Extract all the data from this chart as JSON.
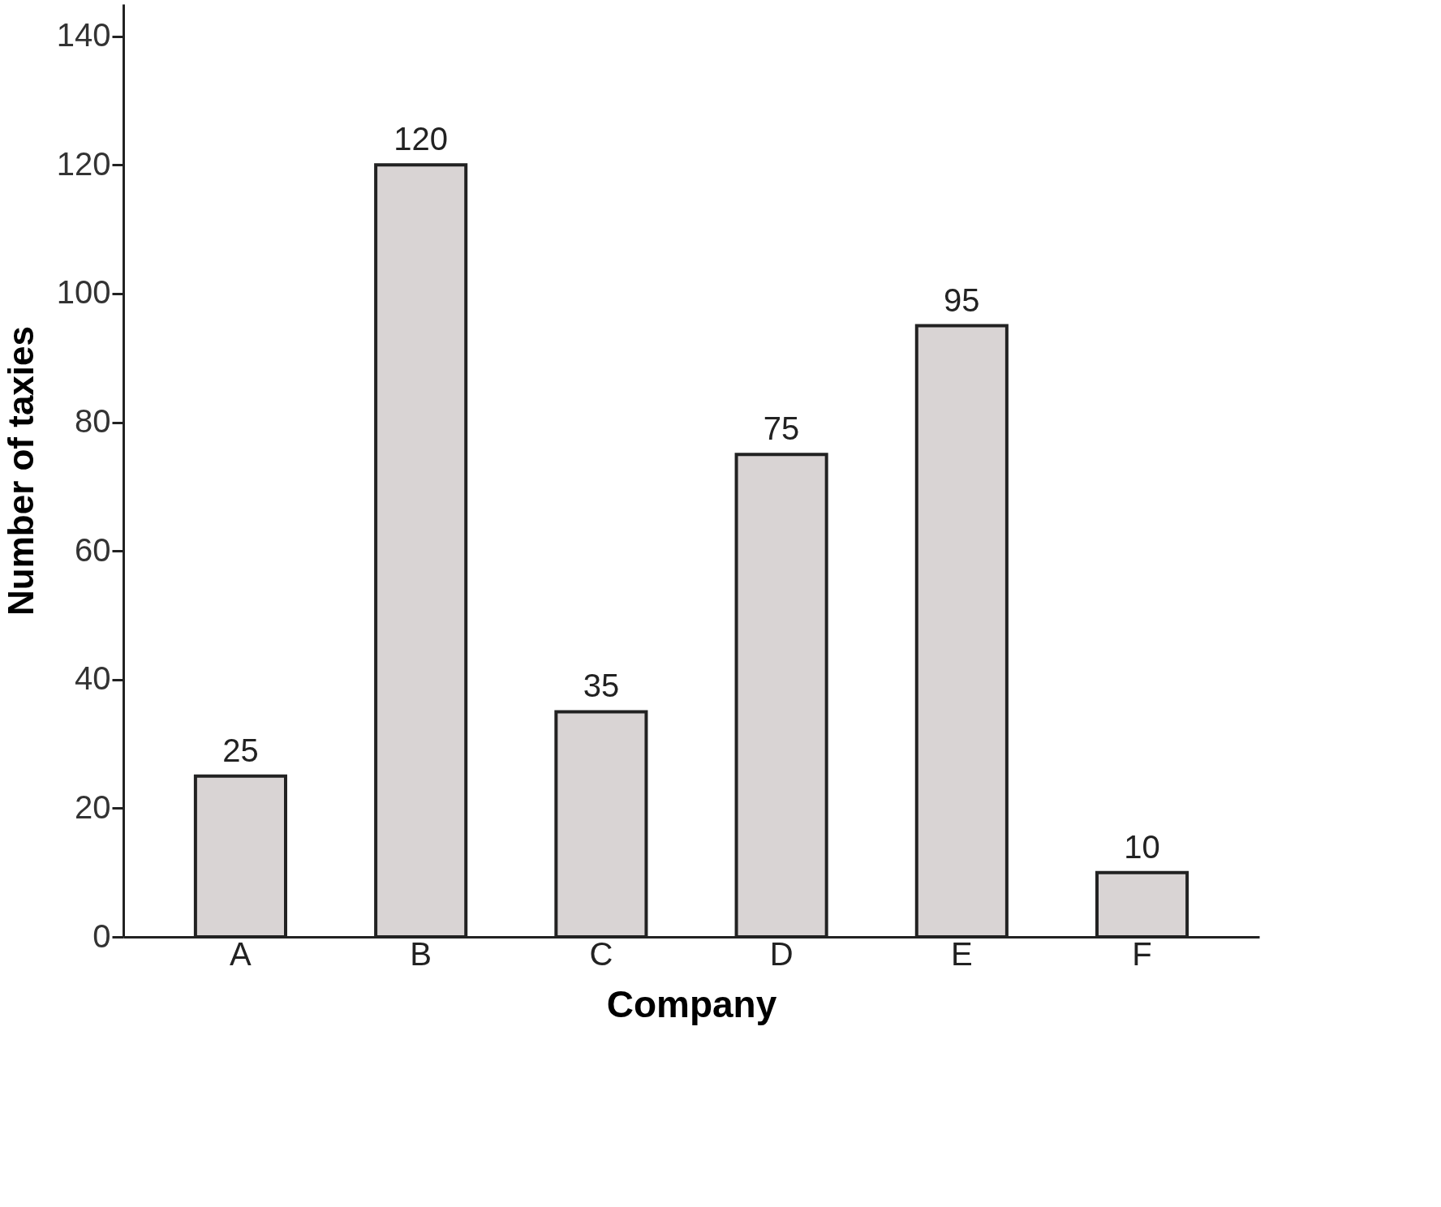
{
  "chart_data": {
    "type": "bar",
    "xlabel": "Company",
    "ylabel": "Number of taxies",
    "categories": [
      "A",
      "B",
      "C",
      "D",
      "E",
      "F"
    ],
    "values": [
      25,
      120,
      35,
      75,
      95,
      10
    ],
    "color": "#d9d4d4",
    "ylim": [
      0,
      145
    ],
    "yticks": [
      0,
      20,
      40,
      60,
      80,
      100,
      120,
      140
    ],
    "data_labels": true,
    "grid": false
  }
}
